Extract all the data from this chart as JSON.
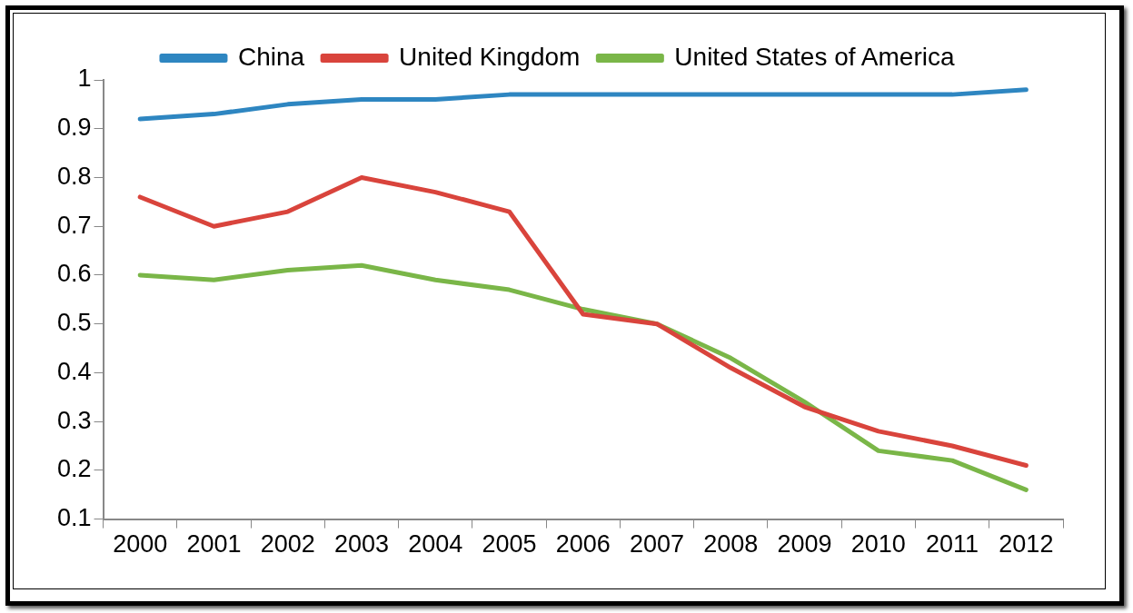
{
  "chart_data": {
    "type": "line",
    "categories": [
      "2000",
      "2001",
      "2002",
      "2003",
      "2004",
      "2005",
      "2006",
      "2007",
      "2008",
      "2009",
      "2010",
      "2011",
      "2012"
    ],
    "series": [
      {
        "name": "China",
        "color": "#2e86c1",
        "values": [
          0.92,
          0.93,
          0.95,
          0.96,
          0.96,
          0.97,
          0.97,
          0.97,
          0.97,
          0.97,
          0.97,
          0.97,
          0.98
        ]
      },
      {
        "name": "United Kingdom",
        "color": "#d9443c",
        "values": [
          0.76,
          0.7,
          0.73,
          0.8,
          0.77,
          0.73,
          0.52,
          0.5,
          0.41,
          0.33,
          0.28,
          0.25,
          0.21
        ]
      },
      {
        "name": "United States of America",
        "color": "#7ab648",
        "values": [
          0.6,
          0.59,
          0.61,
          0.62,
          0.59,
          0.57,
          0.53,
          0.5,
          0.43,
          0.34,
          0.24,
          0.22,
          0.16
        ]
      }
    ],
    "ylim": [
      0.1,
      1
    ],
    "yticks": [
      0.1,
      0.2,
      0.3,
      0.4,
      0.5,
      0.6,
      0.7,
      0.8,
      0.9,
      1
    ],
    "grid": false,
    "legend": "top",
    "marker": "none",
    "line_style": "solid"
  }
}
